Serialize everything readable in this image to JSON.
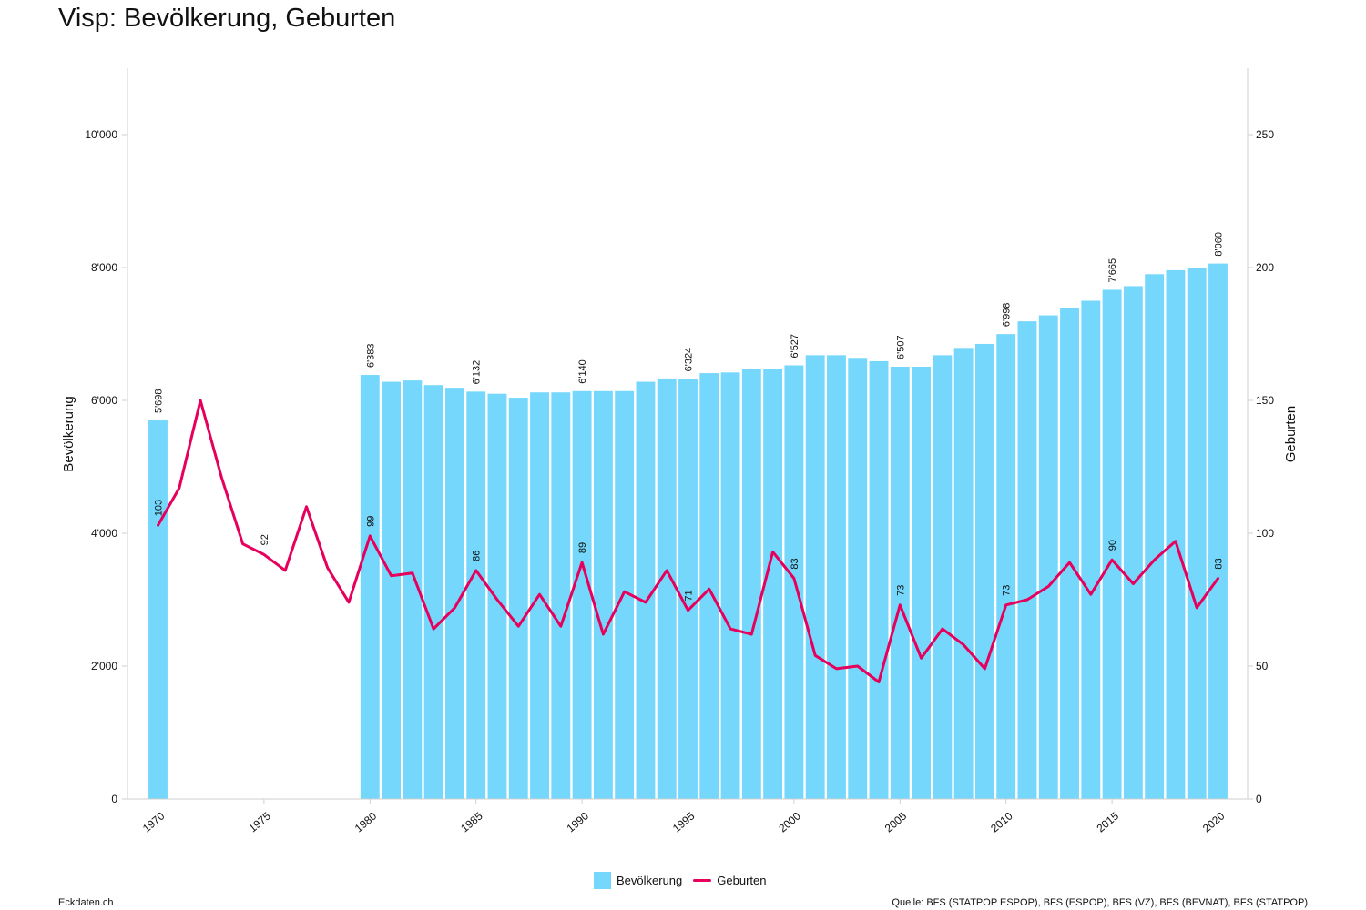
{
  "page": {
    "title": "Visp: Bevölkerung, Geburten",
    "footer_left": "Eckdaten.ch",
    "footer_right": "Quelle: BFS (STATPOP ESPOP), BFS (ESPOP), BFS (VZ), BFS (BEVNAT), BFS (STATPOP)"
  },
  "legend": [
    {
      "label": "Bevölkerung",
      "color": "#74d7fb",
      "kind": "bar"
    },
    {
      "label": "Geburten",
      "color": "#e6005c",
      "kind": "line"
    }
  ],
  "chart_data": {
    "type": "bar+line",
    "title": "Visp: Bevölkerung, Geburten",
    "x": [
      1970,
      1971,
      1972,
      1973,
      1974,
      1975,
      1976,
      1977,
      1978,
      1979,
      1980,
      1981,
      1982,
      1983,
      1984,
      1985,
      1986,
      1987,
      1988,
      1989,
      1990,
      1991,
      1992,
      1993,
      1994,
      1995,
      1996,
      1997,
      1998,
      1999,
      2000,
      2001,
      2002,
      2003,
      2004,
      2005,
      2006,
      2007,
      2008,
      2009,
      2010,
      2011,
      2012,
      2013,
      2014,
      2015,
      2016,
      2017,
      2018,
      2019,
      2020
    ],
    "x_ticks": [
      1970,
      1975,
      1980,
      1985,
      1990,
      1995,
      2000,
      2005,
      2010,
      2015,
      2020
    ],
    "left_axis": {
      "label": "Bevölkerung",
      "ylim": [
        0,
        11000
      ],
      "ticks": [
        0,
        2000,
        4000,
        6000,
        8000,
        10000
      ],
      "tick_labels": [
        "0",
        "2'000",
        "4'000",
        "6'000",
        "8'000",
        "10'000"
      ]
    },
    "right_axis": {
      "label": "Geburten",
      "ylim": [
        0,
        275
      ],
      "ticks": [
        0,
        50,
        100,
        150,
        200,
        250
      ],
      "tick_labels": [
        "0",
        "50",
        "100",
        "150",
        "200",
        "250"
      ]
    },
    "series": [
      {
        "name": "Bevölkerung",
        "type": "bar",
        "axis": "left",
        "color": "#74d7fb",
        "values": [
          5698,
          null,
          null,
          null,
          null,
          null,
          null,
          null,
          null,
          null,
          6383,
          6280,
          6300,
          6230,
          6190,
          6132,
          6100,
          6040,
          6120,
          6120,
          6140,
          6140,
          6140,
          6280,
          6330,
          6324,
          6410,
          6420,
          6470,
          6470,
          6527,
          6680,
          6680,
          6640,
          6590,
          6507,
          6507,
          6680,
          6790,
          6850,
          6998,
          7190,
          7280,
          7390,
          7500,
          7665,
          7720,
          7900,
          7960,
          7990,
          8060
        ],
        "labeled_years": [
          1970,
          1980,
          1985,
          1990,
          1995,
          2000,
          2005,
          2010,
          2015,
          2020
        ],
        "data_labels": [
          "5'698",
          "6'383",
          "6'132",
          "6'140",
          "6'324",
          "6'527",
          "6'507",
          "6'998",
          "7'665",
          "8'060"
        ]
      },
      {
        "name": "Geburten",
        "type": "line",
        "axis": "right",
        "color": "#e6005c",
        "values": [
          103,
          117,
          150,
          121,
          96,
          92,
          86,
          110,
          87,
          74,
          99,
          84,
          85,
          64,
          72,
          86,
          75,
          65,
          77,
          65,
          89,
          62,
          78,
          74,
          86,
          71,
          79,
          64,
          62,
          93,
          83,
          54,
          49,
          50,
          44,
          73,
          53,
          64,
          58,
          49,
          73,
          75,
          80,
          89,
          77,
          90,
          81,
          90,
          97,
          72,
          83
        ],
        "labeled_years": [
          1970,
          1975,
          1980,
          1985,
          1990,
          1995,
          2000,
          2005,
          2010,
          2015,
          2020
        ],
        "data_labels": [
          "103",
          "92",
          "99",
          "86",
          "89",
          "71",
          "83",
          "73",
          "73",
          "90",
          "83"
        ]
      }
    ],
    "grid": false
  }
}
